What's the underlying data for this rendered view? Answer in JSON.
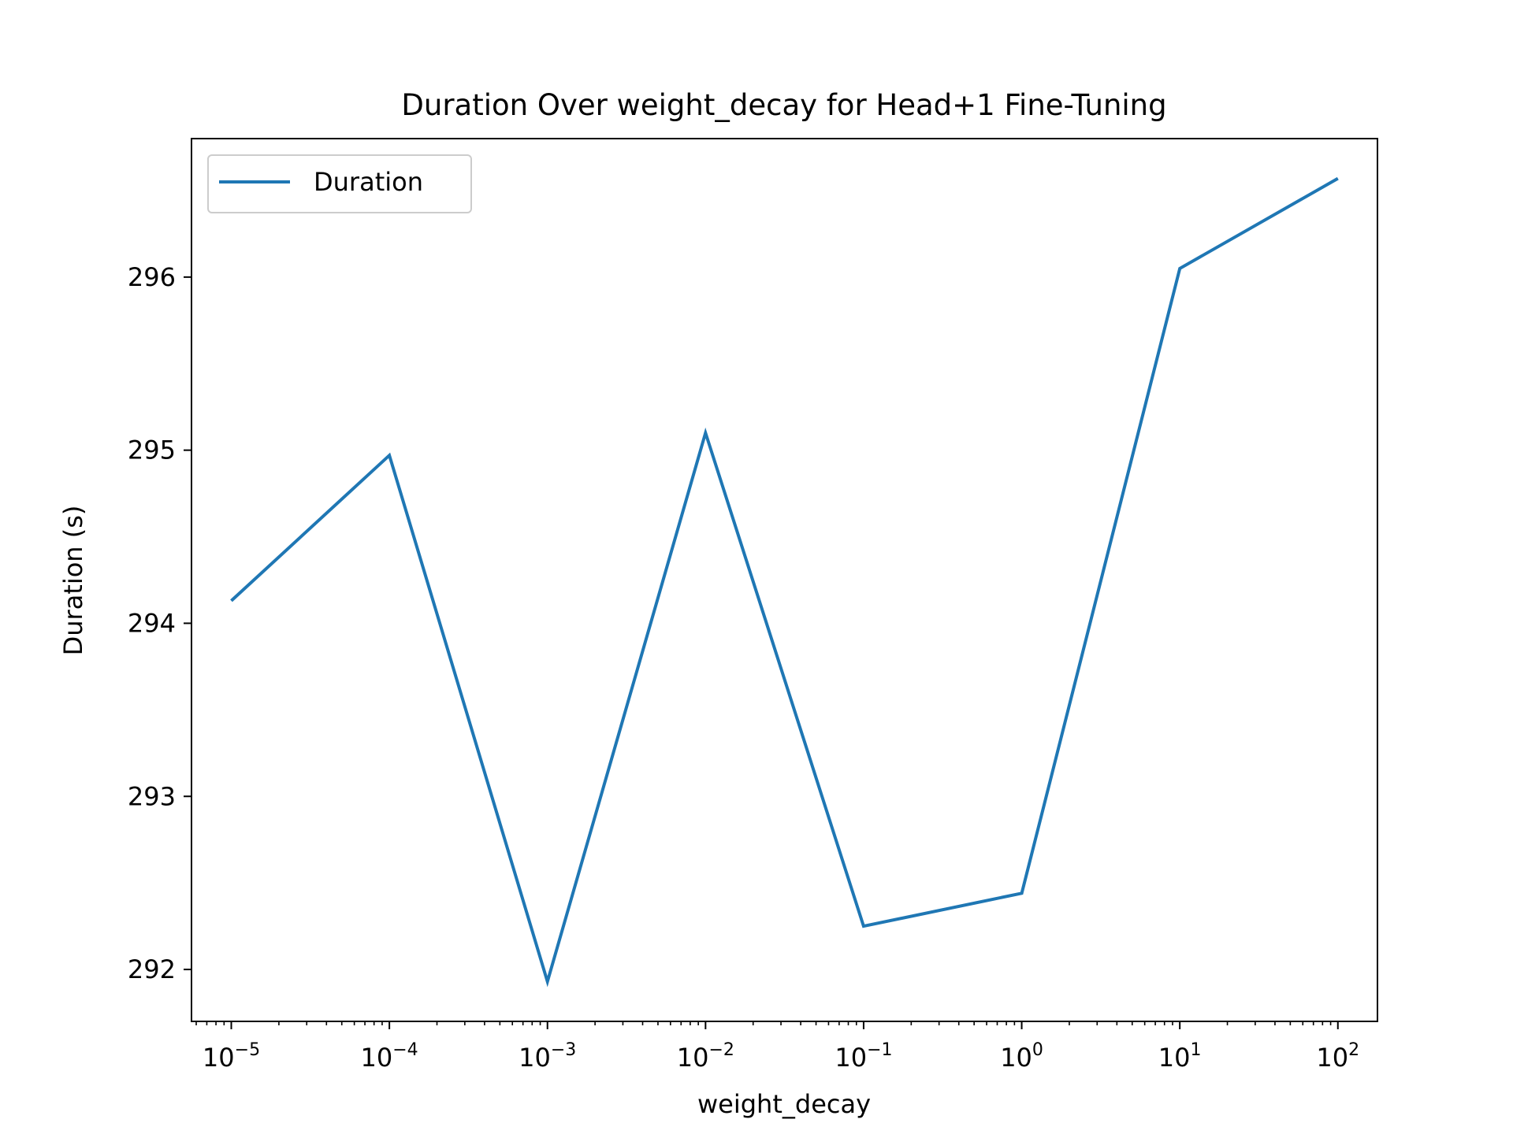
{
  "chart_data": {
    "type": "line",
    "title": "Duration Over weight_decay for Head+1 Fine-Tuning",
    "xlabel": "weight_decay",
    "ylabel": "Duration (s)",
    "xscale": "log",
    "x": [
      1e-05,
      0.0001,
      0.001,
      0.01,
      0.1,
      1,
      10,
      100
    ],
    "series": [
      {
        "name": "Duration",
        "color": "#1f77b4",
        "values": [
          294.13,
          294.97,
          291.93,
          295.1,
          292.25,
          292.44,
          296.05,
          296.57
        ]
      }
    ],
    "xlim": [
      5.6e-06,
      178
    ],
    "ylim": [
      291.7,
      296.8
    ],
    "y_ticks": [
      292,
      293,
      294,
      295,
      296
    ],
    "x_ticks": [
      {
        "value": 1e-05,
        "base": "10",
        "exp": "−5"
      },
      {
        "value": 0.0001,
        "base": "10",
        "exp": "−4"
      },
      {
        "value": 0.001,
        "base": "10",
        "exp": "−3"
      },
      {
        "value": 0.01,
        "base": "10",
        "exp": "−2"
      },
      {
        "value": 0.1,
        "base": "10",
        "exp": "−1"
      },
      {
        "value": 1,
        "base": "10",
        "exp": "0"
      },
      {
        "value": 10,
        "base": "10",
        "exp": "1"
      },
      {
        "value": 100,
        "base": "10",
        "exp": "2"
      }
    ],
    "legend": "top-left",
    "grid": false
  }
}
